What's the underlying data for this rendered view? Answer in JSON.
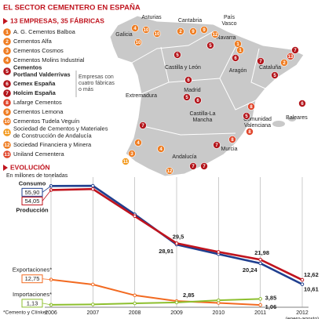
{
  "header": {
    "title": "EL SECTOR CEMENTERO EN ESPAÑA",
    "subtitle": "13 EMPRESAS, 35 FÁBRICAS"
  },
  "companies": [
    {
      "number": 1,
      "name": [
        "A. G. Cementos Balboa"
      ],
      "color": "#ef7d22"
    },
    {
      "number": 2,
      "name": [
        "Cementos Alfa"
      ],
      "color": "#ef7d22"
    },
    {
      "number": 3,
      "name": [
        "Cementos Cosmos"
      ],
      "color": "#ef7d22"
    },
    {
      "number": 4,
      "name": [
        "Cementos Molins Industrial"
      ],
      "color": "#ef7d22"
    },
    {
      "number": 5,
      "name": [
        "Cementos",
        "Portland Valderrivas"
      ],
      "color": "#b3161c"
    },
    {
      "number": 6,
      "name": [
        "Cemex España"
      ],
      "color": "#b3161c"
    },
    {
      "number": 7,
      "name": [
        "Holcim España"
      ],
      "color": "#b3161c"
    },
    {
      "number": 8,
      "name": [
        "Lafarge Cementos"
      ],
      "color": "#e0452a"
    },
    {
      "number": 9,
      "name": [
        "Cementos Lemona"
      ],
      "color": "#ef7d22"
    },
    {
      "number": 10,
      "name": [
        "Cementos Tudela Veguín"
      ],
      "color": "#ef7d22"
    },
    {
      "number": 11,
      "name": [
        "Sociedad de Cementos y Materiales",
        "de Construcción de Andalucía"
      ],
      "color": "#f39a1e"
    },
    {
      "number": 12,
      "name": [
        "Sociedad Financiera y Minera"
      ],
      "color": "#ef7d22"
    },
    {
      "number": 13,
      "name": [
        "Uniland Cementera"
      ],
      "color": "#e0452a"
    }
  ],
  "group_note": [
    "Empresas con",
    "cuatro fábricas",
    "o más"
  ],
  "map": {
    "regions": [
      [
        "Asturias"
      ],
      [
        "Cantabria"
      ],
      [
        "País",
        "Vasco"
      ],
      [
        "Galicia"
      ],
      [
        "Navarra"
      ],
      [
        "Castilla y León"
      ],
      [
        "Aragón"
      ],
      [
        "Cataluña"
      ],
      [
        "Madrid"
      ],
      [
        "Extremadura"
      ],
      [
        "Castilla-La",
        "Mancha"
      ],
      [
        "Comunidad",
        "Valenciana"
      ],
      [
        "Baleares"
      ],
      [
        "Murcia"
      ],
      [
        "Andalucía"
      ]
    ],
    "plants": [
      10,
      10,
      2,
      9,
      9,
      12,
      5,
      1,
      4,
      10,
      5,
      6,
      7,
      5,
      2,
      13,
      7,
      6,
      5,
      6,
      8,
      5,
      6,
      8,
      7,
      7,
      7,
      4,
      4,
      7,
      12,
      11,
      3,
      1,
      8
    ]
  },
  "chart_data": {
    "type": "line",
    "title": "EVOLUCIÓN",
    "subtitle": "En millones de toneladas",
    "x": [
      2006,
      2007,
      2008,
      2009,
      2010,
      2011,
      2012
    ],
    "xlim": [
      2006,
      2012
    ],
    "xticks": [
      2006,
      2007,
      2008,
      2009,
      2010,
      2011,
      2012
    ],
    "x_note": "(enero-agosto)",
    "ylim": [
      0,
      60
    ],
    "grid": true,
    "series": [
      {
        "name": "Consumo",
        "color": "#1f3f8f",
        "values": [
          55.9,
          56.0,
          42.8,
          28.91,
          24.5,
          20.24,
          10.61
        ],
        "value_labels": [
          "55,90",
          null,
          null,
          "28,91",
          null,
          "20,24",
          "10,61"
        ]
      },
      {
        "name": "Producción",
        "color": "#c0141e",
        "values": [
          54.05,
          54.5,
          42.0,
          29.5,
          25.5,
          21.98,
          12.62
        ],
        "value_labels": [
          "54,05",
          null,
          null,
          "29,5",
          null,
          "21,98",
          "12,62"
        ]
      },
      {
        "name": "Exportaciones*",
        "color": "#f26a21",
        "values": [
          12.75,
          10.5,
          5.5,
          2.85,
          2.0,
          1.06,
          null
        ],
        "value_labels": [
          "12,75",
          null,
          null,
          "2,85",
          null,
          "1,06",
          null
        ]
      },
      {
        "name": "Importaciones*",
        "color": "#8dbf2e",
        "values": [
          1.13,
          1.3,
          1.8,
          2.2,
          3.2,
          3.85,
          null
        ],
        "value_labels": [
          "1,13",
          null,
          null,
          null,
          null,
          "3,85",
          null
        ]
      }
    ],
    "footnote": "*Cemento y Clínker"
  }
}
